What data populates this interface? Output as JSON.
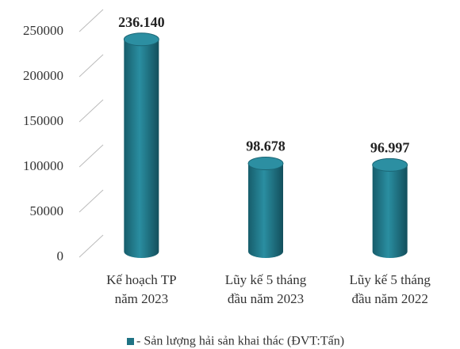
{
  "chart_data": {
    "type": "bar",
    "categories": [
      [
        "Kế hoạch TP",
        "năm 2023"
      ],
      [
        "Lũy kế 5 tháng",
        "đầu năm 2023"
      ],
      [
        "Lũy kế 5 tháng",
        "đầu năm 2022"
      ]
    ],
    "series": [
      {
        "name": "- Sản lượng hải sản khai thác (ĐVT:Tấn)",
        "color": "#1f7384",
        "values": [
          236140,
          98678,
          96997
        ],
        "value_labels": [
          "236.140",
          "98.678",
          "96.997"
        ]
      }
    ],
    "ylim": [
      0,
      250000
    ],
    "yticks": [
      0,
      50000,
      100000,
      150000,
      200000,
      250000
    ],
    "grid": true,
    "legend": "bottom"
  }
}
